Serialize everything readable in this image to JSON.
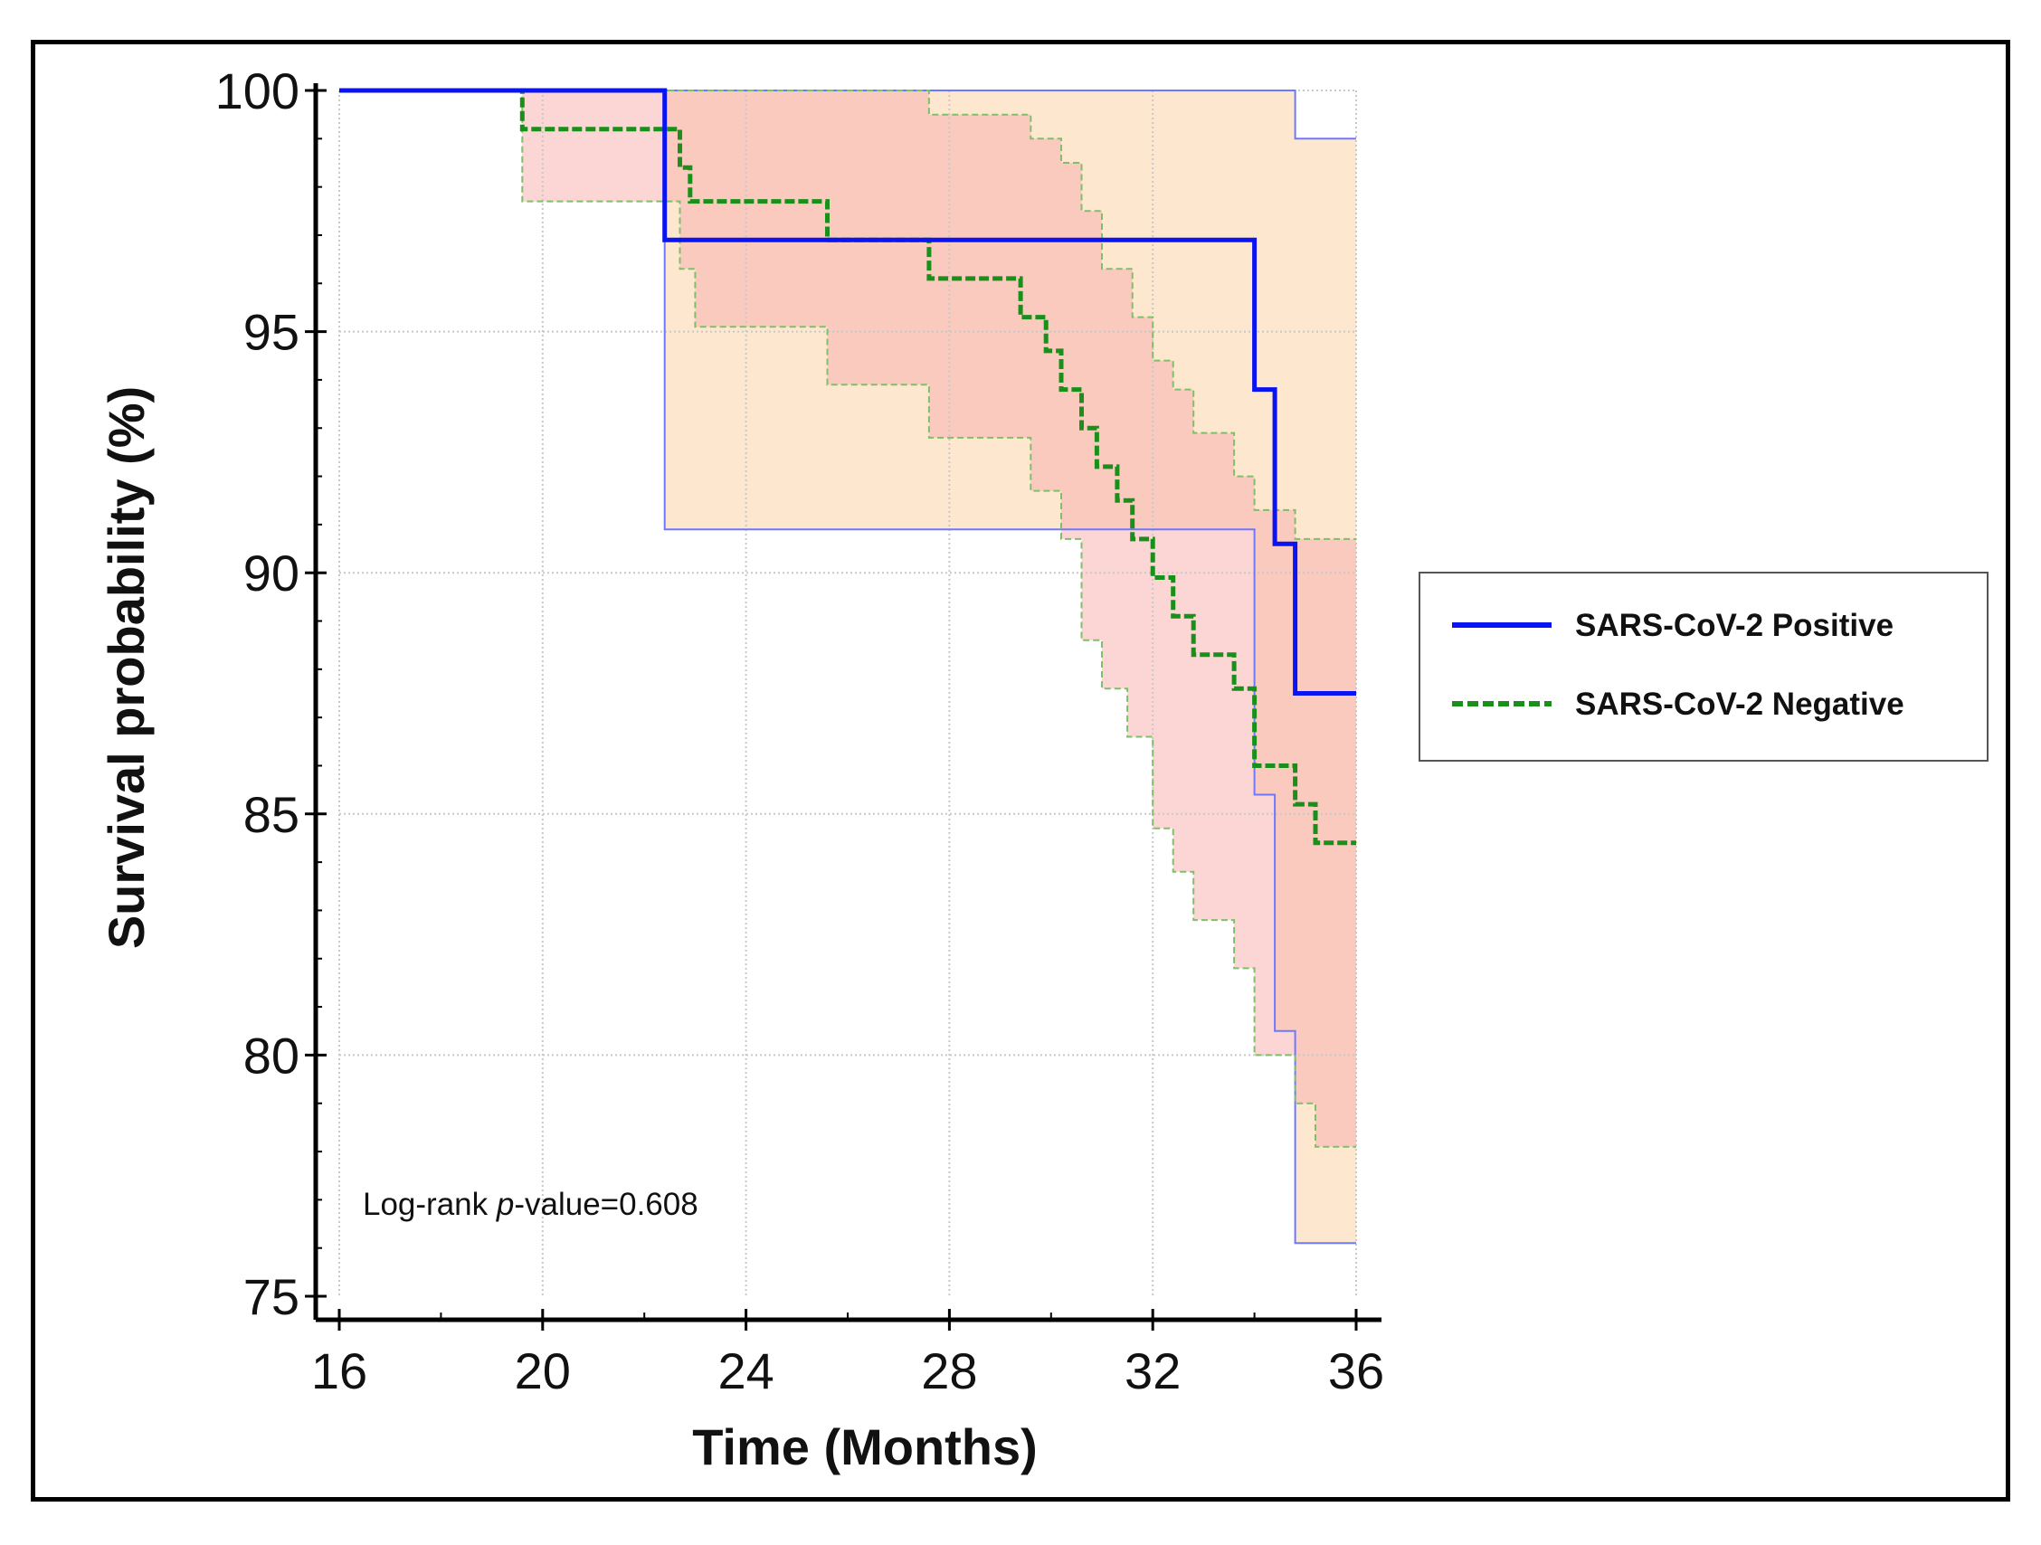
{
  "chart_data": {
    "type": "line",
    "subtype": "kaplan-meier",
    "title": "",
    "xlabel": "Time (Months)",
    "ylabel": "Survival probability (%)",
    "xlim": [
      16,
      36
    ],
    "ylim": [
      75,
      100
    ],
    "xticks": [
      16,
      20,
      24,
      28,
      32,
      36
    ],
    "yticks": [
      75,
      80,
      85,
      90,
      95,
      100
    ],
    "grid": true,
    "legend_position": "right",
    "annotation": {
      "prefix": "Log-rank ",
      "italic": "p",
      "suffix": "-value=0.608"
    },
    "colors": {
      "positive": "#0a14f0",
      "positive_ci_line": "#6e78ff",
      "negative": "#1a8f1a",
      "negative_ci_line": "#7fbf6a",
      "positive_ci_fill": "#fde0c2",
      "negative_ci_fill": "#f9b2b2",
      "grid": "#c8c8c8"
    },
    "series": [
      {
        "name": "SARS-CoV-2 Positive",
        "style": "solid",
        "x": [
          16,
          22.4,
          34.0,
          34.4,
          34.8,
          36
        ],
        "y": [
          100,
          96.9,
          93.8,
          90.6,
          87.5,
          87.5
        ],
        "ci_lower": {
          "x": [
            16,
            22.4,
            34.0,
            34.4,
            34.8,
            36
          ],
          "y": [
            100,
            90.9,
            85.4,
            80.5,
            76.1,
            76.1
          ]
        },
        "ci_upper": {
          "x": [
            16,
            34.8,
            36
          ],
          "y": [
            100,
            99.0,
            99.0
          ]
        }
      },
      {
        "name": "SARS-CoV-2 Negative",
        "style": "dashed",
        "x": [
          16,
          19.6,
          22.7,
          22.9,
          23.1,
          25.6,
          27.6,
          29.4,
          29.9,
          30.2,
          30.6,
          30.9,
          31.3,
          31.6,
          32.0,
          32.4,
          32.8,
          33.6,
          34.0,
          34.8,
          35.2,
          36
        ],
        "y": [
          100,
          99.2,
          98.4,
          97.7,
          97.7,
          96.9,
          96.1,
          95.3,
          94.6,
          93.8,
          93.0,
          92.2,
          91.5,
          90.7,
          89.9,
          89.1,
          88.3,
          87.6,
          86.0,
          85.2,
          84.4,
          84.4
        ],
        "ci_lower": {
          "x": [
            16,
            19.6,
            22.7,
            23.0,
            25.6,
            27.6,
            29.6,
            30.2,
            30.6,
            31.0,
            31.5,
            32.0,
            32.4,
            32.8,
            33.6,
            34.0,
            34.8,
            35.2,
            36
          ],
          "y": [
            100,
            97.7,
            96.3,
            95.1,
            93.9,
            92.8,
            91.7,
            90.7,
            88.6,
            87.6,
            86.6,
            84.7,
            83.8,
            82.8,
            81.8,
            80.0,
            79.0,
            78.1,
            78.1
          ]
        },
        "ci_upper": {
          "x": [
            16,
            25.8,
            27.6,
            29.6,
            30.2,
            30.6,
            31.0,
            31.6,
            32.0,
            32.4,
            32.8,
            33.6,
            34.0,
            34.8,
            35.2,
            36
          ],
          "y": [
            100,
            100,
            99.5,
            99.0,
            98.5,
            97.5,
            96.3,
            95.3,
            94.4,
            93.8,
            92.9,
            92.0,
            91.3,
            90.7,
            90.7,
            90.7
          ]
        }
      }
    ]
  }
}
